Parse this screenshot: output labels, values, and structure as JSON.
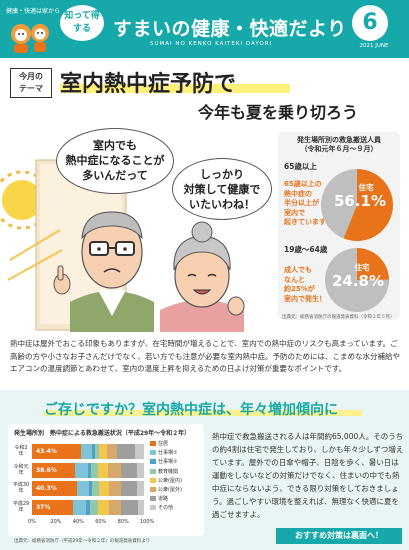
{
  "header": {
    "badge": "健康・快適は家から",
    "bubble_text": "知って得する",
    "title": "すまいの健康・快適だより",
    "subtitle": "SUMAI NO KENKO KAITEKI DAYORI",
    "issue_number": "6",
    "issue_date": "2021 JUNE",
    "brand_color": "#17a9a9"
  },
  "theme": {
    "label_line1": "今月の",
    "label_line2": "テーマ",
    "title": "室内熱中症予防で",
    "subtitle": "今年も夏を乗り切ろう"
  },
  "illustration": {
    "bubble_man": [
      "室内でも",
      "熱中症になることが",
      "多いんだって"
    ],
    "bubble_woman": [
      "しっかり",
      "対策して健康で",
      "いたいわね！"
    ]
  },
  "pie_panel": {
    "title": "発生場所別の救急搬送人員",
    "period": "（令和元年６月〜９月）",
    "source": "出典元：総務省消防庁の報道発表資料（令和２年５月）",
    "accent_color": "#e8731a",
    "muted_color": "#bfbfbf",
    "groups": [
      {
        "label": "65歳以上",
        "note": [
          "65歳以上の",
          "熱中症の",
          "半分以上が",
          "室内で",
          "起きています！"
        ],
        "slice_label": "住宅",
        "percent_text": "56.1%",
        "percent": 56.1
      },
      {
        "label": "19歳〜64歳",
        "note": [
          "成人でも",
          "なんと",
          "約25%が",
          "室内で発生！"
        ],
        "slice_label": "住宅",
        "percent_text": "24.8%",
        "percent": 24.8
      }
    ]
  },
  "body_text": "熱中症は屋外でおこる印象もありますが、在宅時間が増えることで、室内での熱中症のリスクも高まっています。ご高齢の方や小さなお子さんだけでなく、若い方でも注意が必要な室内熱中症。予防のためには、こまめな水分補給やエアコンの温度調節とあわせて、室内の温度上昇を抑えるための日よけ対策が重要なポイントです。",
  "bottom": {
    "title": "ご存じですか？室内熱中症は、年々増加傾向に",
    "side_text": "熱中症で救急搬送される人は年間約65,000人。そのうちの約4割は住宅で発生しており、しかも年々少しずつ増えています。屋外での日傘や帽子、日陰を歩く、暑い日は運動をしないなどの対策だけでなく、住まいの中でも熱中症にならないよう、できる限り対策をしておきましょう。過ごしやすい環境を整えれば、無理なく快適に夏を過ごせますよ。",
    "footer_button": "おすすめ対策は裏面へ！"
  },
  "chart_data": {
    "type": "bar",
    "orientation": "horizontal",
    "stacked": true,
    "title": "発生場所別　熱中症による救急搬送状況（平成29年〜令和２年）",
    "source": "出典元：総務省消防庁（平成29年〜令和２年）の報道発表資料より",
    "categories": [
      "令和2年",
      "令和元年",
      "平成30年",
      "平成29年"
    ],
    "first_segment_labels": [
      "43.4%",
      "38.6%",
      "40.3%",
      "37%"
    ],
    "xlim": [
      0,
      100
    ],
    "x_ticks": [
      "0%",
      "20%",
      "40%",
      "60%",
      "80%",
      "100%"
    ],
    "legend": [
      "住居",
      "仕事場①",
      "仕事場②",
      "教育機関",
      "公衆(屋内)",
      "公衆(屋外)",
      "道路",
      "その他"
    ],
    "series_colors": [
      "#e8731a",
      "#7fc3d8",
      "#4da2c9",
      "#93c9a8",
      "#f2c74e",
      "#d8a86a",
      "#9e9e9e",
      "#c9c9c9"
    ],
    "series": [
      {
        "name": "住居",
        "values": [
          43.4,
          38.6,
          40.3,
          37.0
        ]
      },
      {
        "name": "仕事場①",
        "values": [
          10.0,
          11.0,
          10.5,
          11.5
        ]
      },
      {
        "name": "仕事場②",
        "values": [
          2.9,
          3.5,
          3.0,
          3.5
        ]
      },
      {
        "name": "教育機関",
        "values": [
          3.5,
          6.0,
          6.2,
          7.3
        ]
      },
      {
        "name": "公衆(屋内)",
        "values": [
          6.9,
          9.0,
          8.5,
          9.6
        ]
      },
      {
        "name": "公衆(屋外)",
        "values": [
          9.0,
          11.5,
          11.0,
          11.0
        ]
      },
      {
        "name": "道路",
        "values": [
          16.5,
          14.0,
          14.5,
          15.0
        ]
      },
      {
        "name": "その他",
        "values": [
          7.8,
          6.4,
          6.0,
          5.1
        ]
      }
    ]
  }
}
